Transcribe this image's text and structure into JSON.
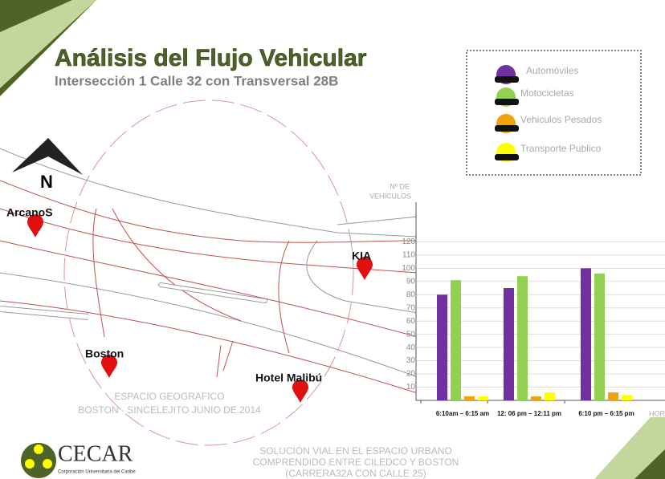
{
  "title": "Análisis del Flujo Vehicular",
  "subtitle": "Intersección 1 Calle 32 con Transversal 28B",
  "map": {
    "north": "N",
    "places": [
      "ArcanoS",
      "KIA",
      "Boston",
      "Hotel Malibú"
    ],
    "caption": [
      "ESPACIO GEOGRAFICO",
      "BOSTON - SINCELEJITO JUNIO DE 2014"
    ]
  },
  "logo": {
    "name": "CECAR",
    "tagline": "Corporación Universitaria del Caribe"
  },
  "footer": [
    "SOLUCIÓN VIAL EN EL ESPACIO URBANO",
    "COMPRENDIDO ENTRE CILEDCO Y BOSTON",
    "(CARRERA32A CON CALLE 25)"
  ],
  "chart_data": {
    "type": "bar",
    "y_label": [
      "Nº DE",
      "VEHICULOS"
    ],
    "x_label": "HORA",
    "categories": [
      "6:10am – 6:15 am",
      "12: 06 pm – 12:11 pm",
      "6:10 pm – 6:15 pm"
    ],
    "series": [
      {
        "name": "Automóviles",
        "color": "#7030a0",
        "values": [
          80,
          85,
          100
        ]
      },
      {
        "name": "Motocicletas",
        "color": "#92d050",
        "values": [
          91,
          94,
          96
        ]
      },
      {
        "name": "Vehiculos Pesados",
        "color": "#f0a30a",
        "values": [
          3,
          3,
          6
        ]
      },
      {
        "name": "Transporte Publico",
        "color": "#ffff00",
        "values": [
          3,
          6,
          4
        ]
      }
    ],
    "ylim": [
      0,
      150
    ],
    "yticks": [
      10,
      20,
      30,
      40,
      50,
      60,
      70,
      80,
      90,
      100,
      110,
      120
    ],
    "grid": true
  }
}
